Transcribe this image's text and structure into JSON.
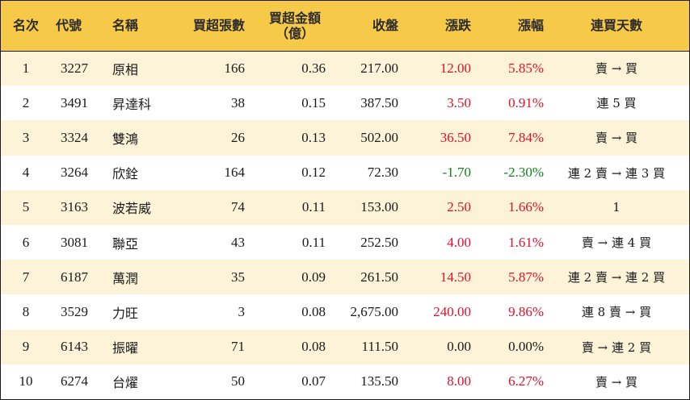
{
  "headers": {
    "rank": "名次",
    "code": "代號",
    "name": "名稱",
    "net_buy_lots": "買超張數",
    "net_buy_amount_line1": "買超金額",
    "net_buy_amount_line2": "（億）",
    "close": "收盤",
    "change": "漲跌",
    "pct": "漲幅",
    "consecutive": "連買天數"
  },
  "colors": {
    "header_bg": "#f7c948",
    "stripe_bg": "#fdf3d9",
    "up": "#e0112a",
    "down": "#11801f"
  },
  "rows": [
    {
      "rank": "1",
      "code": "3227",
      "name": "原相",
      "lots": "166",
      "amount": "0.36",
      "close": "217.00",
      "change": "12.00",
      "pct": "5.85%",
      "trend": "up",
      "consecutive": "賣 → 買"
    },
    {
      "rank": "2",
      "code": "3491",
      "name": "昇達科",
      "lots": "38",
      "amount": "0.15",
      "close": "387.50",
      "change": "3.50",
      "pct": "0.91%",
      "trend": "up",
      "consecutive": "連 5 買"
    },
    {
      "rank": "3",
      "code": "3324",
      "name": "雙鴻",
      "lots": "26",
      "amount": "0.13",
      "close": "502.00",
      "change": "36.50",
      "pct": "7.84%",
      "trend": "up",
      "consecutive": "賣 → 買"
    },
    {
      "rank": "4",
      "code": "3264",
      "name": "欣銓",
      "lots": "164",
      "amount": "0.12",
      "close": "72.30",
      "change": "-1.70",
      "pct": "-2.30%",
      "trend": "down",
      "consecutive": "連 2 賣 → 連 3 買"
    },
    {
      "rank": "5",
      "code": "3163",
      "name": "波若威",
      "lots": "74",
      "amount": "0.11",
      "close": "153.00",
      "change": "2.50",
      "pct": "1.66%",
      "trend": "up",
      "consecutive": "1"
    },
    {
      "rank": "6",
      "code": "3081",
      "name": "聯亞",
      "lots": "43",
      "amount": "0.11",
      "close": "252.50",
      "change": "4.00",
      "pct": "1.61%",
      "trend": "up",
      "consecutive": "賣 → 連 4 買"
    },
    {
      "rank": "7",
      "code": "6187",
      "name": "萬潤",
      "lots": "35",
      "amount": "0.09",
      "close": "261.50",
      "change": "14.50",
      "pct": "5.87%",
      "trend": "up",
      "consecutive": "連 2 賣 → 連 2 買"
    },
    {
      "rank": "8",
      "code": "3529",
      "name": "力旺",
      "lots": "3",
      "amount": "0.08",
      "close": "2,675.00",
      "change": "240.00",
      "pct": "9.86%",
      "trend": "up",
      "consecutive": "連 8 賣 → 買"
    },
    {
      "rank": "9",
      "code": "6143",
      "name": "振曜",
      "lots": "71",
      "amount": "0.08",
      "close": "111.50",
      "change": "0.00",
      "pct": "0.00%",
      "trend": "flat",
      "consecutive": "賣 → 連 2 買"
    },
    {
      "rank": "10",
      "code": "6274",
      "name": "台燿",
      "lots": "50",
      "amount": "0.07",
      "close": "135.50",
      "change": "8.00",
      "pct": "6.27%",
      "trend": "up",
      "consecutive": "賣 → 買"
    }
  ]
}
